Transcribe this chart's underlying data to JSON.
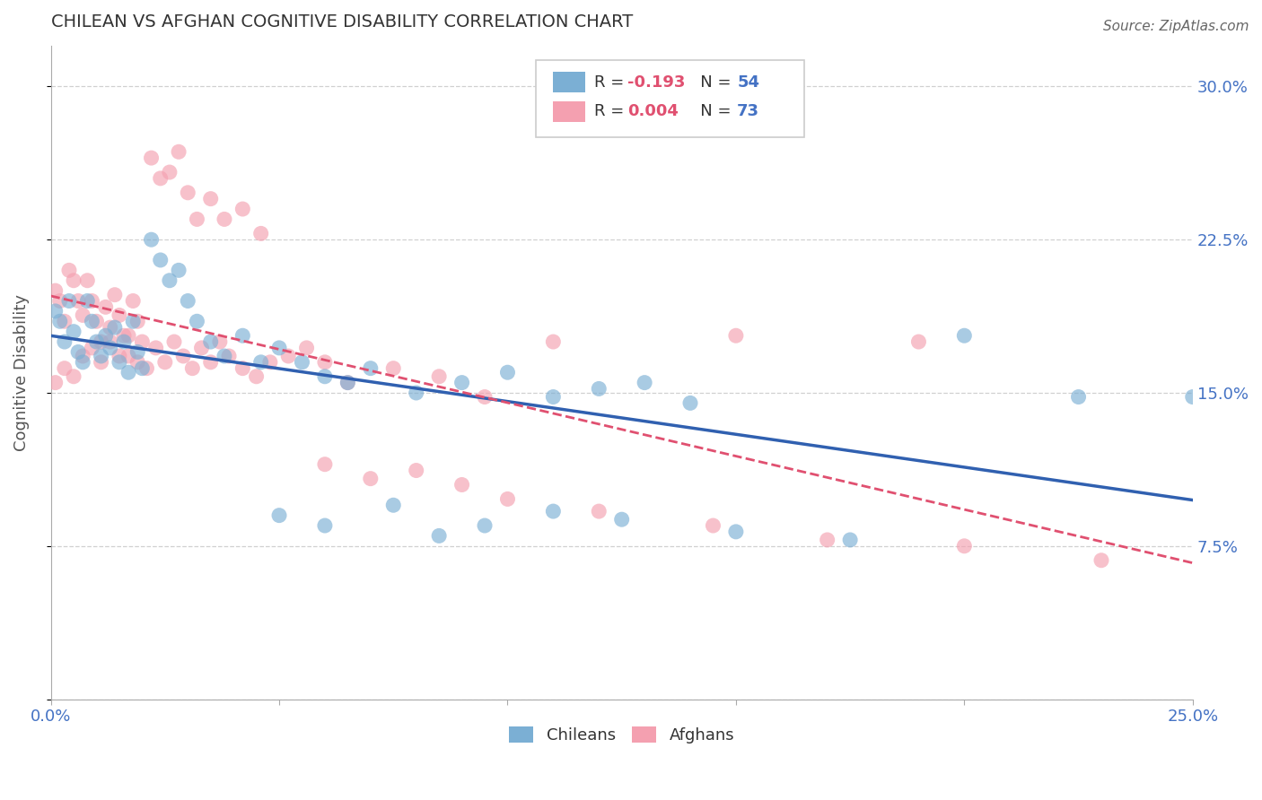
{
  "title": "CHILEAN VS AFGHAN COGNITIVE DISABILITY CORRELATION CHART",
  "source": "Source: ZipAtlas.com",
  "ylabel_label": "Cognitive Disability",
  "xlim": [
    0.0,
    0.25
  ],
  "ylim": [
    0.0,
    0.32
  ],
  "background_color": "#ffffff",
  "grid_color": "#d0d0d0",
  "chilean_color": "#7bafd4",
  "afghan_color": "#f4a0b0",
  "chilean_line_color": "#3060b0",
  "afghan_line_color": "#e05070",
  "chilean_R": -0.193,
  "chilean_N": 54,
  "afghan_R": 0.004,
  "afghan_N": 73,
  "legend_label_chilean": "Chileans",
  "legend_label_afghan": "Afghans",
  "chilean_x": [
    0.001,
    0.002,
    0.003,
    0.004,
    0.005,
    0.006,
    0.007,
    0.008,
    0.009,
    0.01,
    0.011,
    0.012,
    0.013,
    0.014,
    0.015,
    0.016,
    0.017,
    0.018,
    0.019,
    0.02,
    0.022,
    0.024,
    0.026,
    0.028,
    0.03,
    0.032,
    0.035,
    0.038,
    0.042,
    0.046,
    0.05,
    0.055,
    0.06,
    0.065,
    0.07,
    0.08,
    0.09,
    0.1,
    0.11,
    0.12,
    0.13,
    0.14,
    0.05,
    0.06,
    0.075,
    0.085,
    0.095,
    0.11,
    0.125,
    0.15,
    0.175,
    0.2,
    0.225,
    0.25
  ],
  "chilean_y": [
    0.19,
    0.185,
    0.175,
    0.195,
    0.18,
    0.17,
    0.165,
    0.195,
    0.185,
    0.175,
    0.168,
    0.178,
    0.172,
    0.182,
    0.165,
    0.175,
    0.16,
    0.185,
    0.17,
    0.162,
    0.225,
    0.215,
    0.205,
    0.21,
    0.195,
    0.185,
    0.175,
    0.168,
    0.178,
    0.165,
    0.172,
    0.165,
    0.158,
    0.155,
    0.162,
    0.15,
    0.155,
    0.16,
    0.148,
    0.152,
    0.155,
    0.145,
    0.09,
    0.085,
    0.095,
    0.08,
    0.085,
    0.092,
    0.088,
    0.082,
    0.078,
    0.178,
    0.148,
    0.148
  ],
  "afghan_x": [
    0.001,
    0.002,
    0.003,
    0.004,
    0.005,
    0.006,
    0.007,
    0.008,
    0.009,
    0.01,
    0.011,
    0.012,
    0.013,
    0.014,
    0.015,
    0.016,
    0.017,
    0.018,
    0.019,
    0.02,
    0.022,
    0.024,
    0.026,
    0.028,
    0.03,
    0.032,
    0.035,
    0.038,
    0.042,
    0.046,
    0.001,
    0.003,
    0.005,
    0.007,
    0.009,
    0.011,
    0.013,
    0.015,
    0.017,
    0.019,
    0.021,
    0.023,
    0.025,
    0.027,
    0.029,
    0.031,
    0.033,
    0.035,
    0.037,
    0.039,
    0.042,
    0.045,
    0.048,
    0.052,
    0.056,
    0.06,
    0.065,
    0.075,
    0.085,
    0.095,
    0.06,
    0.07,
    0.08,
    0.09,
    0.1,
    0.12,
    0.145,
    0.17,
    0.2,
    0.23,
    0.11,
    0.15,
    0.19
  ],
  "afghan_y": [
    0.2,
    0.195,
    0.185,
    0.21,
    0.205,
    0.195,
    0.188,
    0.205,
    0.195,
    0.185,
    0.175,
    0.192,
    0.182,
    0.198,
    0.188,
    0.178,
    0.168,
    0.195,
    0.185,
    0.175,
    0.265,
    0.255,
    0.258,
    0.268,
    0.248,
    0.235,
    0.245,
    0.235,
    0.24,
    0.228,
    0.155,
    0.162,
    0.158,
    0.168,
    0.172,
    0.165,
    0.175,
    0.168,
    0.178,
    0.165,
    0.162,
    0.172,
    0.165,
    0.175,
    0.168,
    0.162,
    0.172,
    0.165,
    0.175,
    0.168,
    0.162,
    0.158,
    0.165,
    0.168,
    0.172,
    0.165,
    0.155,
    0.162,
    0.158,
    0.148,
    0.115,
    0.108,
    0.112,
    0.105,
    0.098,
    0.092,
    0.085,
    0.078,
    0.075,
    0.068,
    0.175,
    0.178,
    0.175
  ]
}
